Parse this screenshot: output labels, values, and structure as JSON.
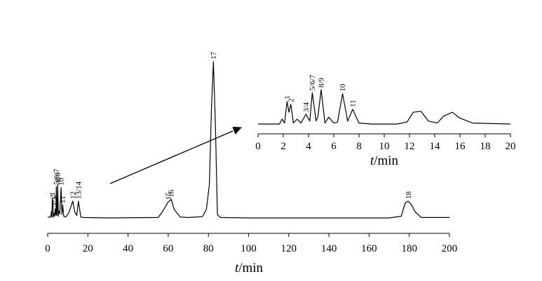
{
  "chart_data": [
    {
      "type": "line",
      "name": "main",
      "title": "",
      "xlabel_var": "t",
      "xlabel_unit": "/min",
      "ylabel": "",
      "xlim": [
        0,
        200
      ],
      "x_ticks": [
        0,
        20,
        40,
        60,
        80,
        100,
        120,
        140,
        160,
        180,
        200
      ],
      "grid": false,
      "peaks": [
        {
          "label": "1",
          "t": 2.3
        },
        {
          "label": "2",
          "t": 2.6
        },
        {
          "label": "3/4",
          "t": 3.8
        },
        {
          "label": "5/6/7",
          "t": 4.3
        },
        {
          "label": "8/9",
          "t": 5.0
        },
        {
          "label": "10",
          "t": 6.7
        },
        {
          "label": "11",
          "t": 7.5
        },
        {
          "label": "12",
          "t": 12.5
        },
        {
          "label": "13/14",
          "t": 15.3
        },
        {
          "label": "15",
          "t": 60.0
        },
        {
          "label": "16",
          "t": 61.5
        },
        {
          "label": "17",
          "t": 82.5
        },
        {
          "label": "18",
          "t": 179.5
        }
      ],
      "series": [
        {
          "x": [
            0,
            1.5,
            1.9,
            2.1,
            2.3,
            2.5,
            2.6,
            2.8,
            3.1,
            3.4,
            3.8,
            4.1,
            4.3,
            4.6,
            4.8,
            5.0,
            5.3,
            5.6,
            6.0,
            6.7,
            7.1,
            7.5,
            8.0,
            9.0,
            10.5,
            12.5,
            13.5,
            14.5,
            15.3,
            16.5,
            18,
            30,
            55,
            57,
            60,
            61.5,
            63,
            66,
            70,
            77,
            79,
            80.5,
            81.5,
            82.5,
            83.5,
            84.5,
            86,
            100,
            140,
            170,
            176,
            178,
            179.5,
            181,
            183,
            186,
            200
          ],
          "y": [
            1.0,
            1.0,
            8.0,
            1.0,
            24.0,
            12.0,
            21.0,
            1.0,
            6.0,
            2.0,
            11.0,
            3.0,
            37.0,
            3.0,
            9.0,
            40.0,
            2.0,
            8.0,
            5.0,
            36.0,
            4.0,
            15.0,
            2.0,
            1.0,
            6.0,
            20.0,
            7.0,
            3.0,
            20.0,
            1.0,
            0.5,
            0.0,
            0.5,
            7.0,
            19.0,
            22.0,
            10.0,
            1.0,
            0.5,
            1.5,
            10.0,
            40.0,
            128.0,
            186.0,
            110.0,
            4.0,
            0.5,
            0.0,
            0.0,
            0.0,
            2.0,
            18.0,
            20.0,
            16.0,
            7.0,
            0.5,
            0.5
          ]
        }
      ]
    },
    {
      "type": "line",
      "name": "inset",
      "title": "",
      "xlabel_var": "t",
      "xlabel_unit": "/min",
      "ylabel": "",
      "xlim": [
        0,
        20
      ],
      "x_ticks": [
        0,
        2,
        4,
        6,
        8,
        10,
        12,
        14,
        16,
        18,
        20
      ],
      "grid": false,
      "peaks": [
        {
          "label": "1",
          "t": 2.3
        },
        {
          "label": "2",
          "t": 2.6
        },
        {
          "label": "3/4",
          "t": 3.8
        },
        {
          "label": "5/6/7",
          "t": 4.3
        },
        {
          "label": "8/9",
          "t": 5.0
        },
        {
          "label": "10",
          "t": 6.7
        },
        {
          "label": "11",
          "t": 7.5
        }
      ],
      "series": [
        {
          "x": [
            0,
            1.7,
            1.9,
            2.1,
            2.3,
            2.45,
            2.6,
            2.8,
            3.1,
            3.4,
            3.8,
            4.1,
            4.3,
            4.6,
            4.75,
            5.0,
            5.3,
            5.6,
            6.0,
            6.3,
            6.7,
            7.1,
            7.5,
            8.0,
            9.0,
            11.0,
            11.8,
            12.3,
            12.9,
            13.5,
            14.2,
            14.7,
            15.4,
            16.0,
            17.0,
            20.0
          ],
          "y": [
            0.0,
            0.0,
            5.0,
            1.0,
            23.0,
            12.0,
            20.0,
            1.0,
            5.0,
            1.0,
            10.0,
            3.0,
            32.0,
            3.0,
            8.0,
            35.0,
            1.0,
            7.0,
            1.0,
            2.0,
            31.0,
            3.0,
            15.0,
            1.0,
            0.0,
            0.0,
            2.0,
            12.0,
            13.0,
            3.0,
            1.0,
            8.0,
            12.0,
            6.0,
            1.0,
            0.0
          ]
        }
      ]
    }
  ]
}
